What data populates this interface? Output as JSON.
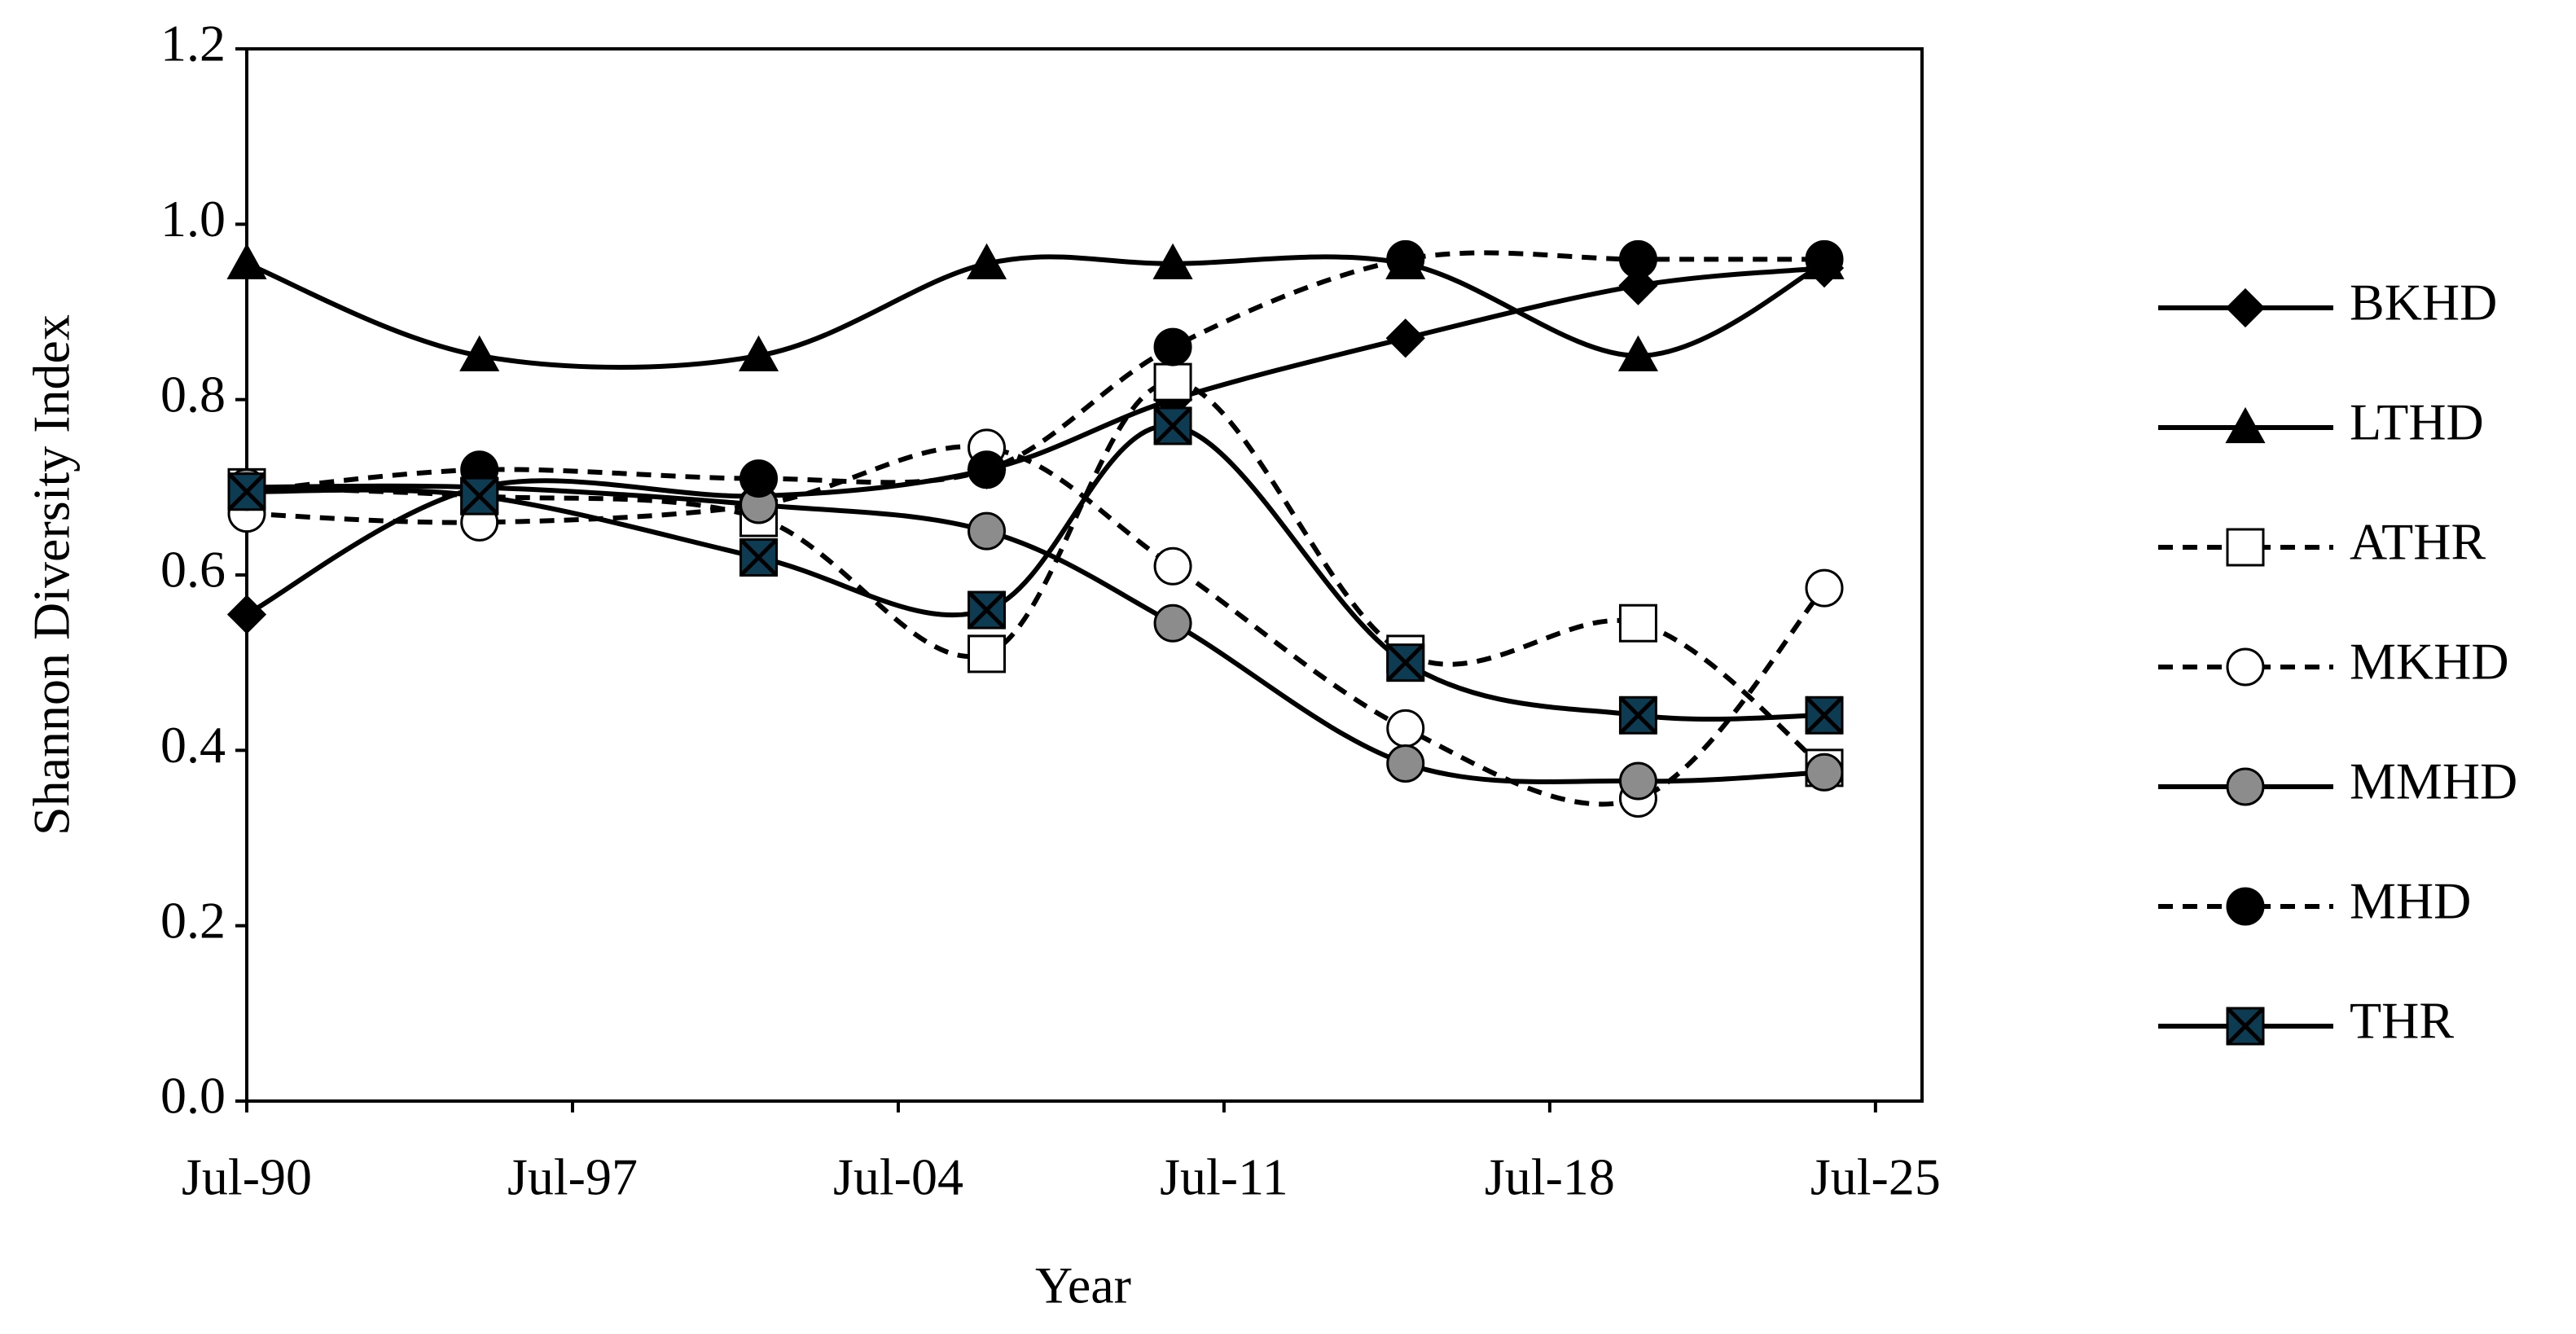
{
  "chart_data": {
    "type": "line",
    "x_label": "Year",
    "y_label": "Shannon Diversity Index",
    "xlim": [
      1990.5,
      2026.5
    ],
    "xticks": [
      {
        "value": 1990.5,
        "label": "Jul-90"
      },
      {
        "value": 1997.5,
        "label": "Jul-97"
      },
      {
        "value": 2004.5,
        "label": "Jul-04"
      },
      {
        "value": 2011.5,
        "label": "Jul-11"
      },
      {
        "value": 2018.5,
        "label": "Jul-18"
      },
      {
        "value": 2025.5,
        "label": "Jul-25"
      }
    ],
    "ylim": [
      0,
      1.2
    ],
    "yticks": [
      {
        "value": 0,
        "label": "0.0"
      },
      0.2,
      0.4,
      0.6,
      0.8,
      {
        "value": 1,
        "label": "1.0"
      },
      1.2
    ],
    "x": [
      1990.5,
      1995.5,
      2001.5,
      2006.4,
      2010.4,
      2015.4,
      2020.4,
      2024.4
    ],
    "series": [
      {
        "name": "BKHD",
        "color": "#000000",
        "marker": "diamond",
        "marker_fill": "#000000",
        "dashed": false,
        "values": [
          0.555,
          0.7,
          0.69,
          0.72,
          0.8,
          0.87,
          0.93,
          0.95
        ]
      },
      {
        "name": "LTHD",
        "color": "#000000",
        "marker": "triangle",
        "marker_fill": "#000000",
        "dashed": false,
        "values": [
          0.955,
          0.85,
          0.85,
          0.955,
          0.955,
          0.955,
          0.85,
          0.955
        ]
      },
      {
        "name": "ATHR",
        "color": "#000000",
        "marker": "square",
        "marker_fill": "#ffffff",
        "dashed": true,
        "values": [
          0.7,
          0.69,
          0.665,
          0.51,
          0.82,
          0.51,
          0.545,
          0.38
        ]
      },
      {
        "name": "MKHD",
        "color": "#000000",
        "marker": "circle",
        "marker_fill": "#ffffff",
        "dashed": true,
        "values": [
          0.67,
          0.66,
          0.68,
          0.745,
          0.61,
          0.425,
          0.345,
          0.585
        ]
      },
      {
        "name": "MMHD",
        "color": "#000000",
        "marker": "circle",
        "marker_fill": "#8c8c8c",
        "dashed": false,
        "values": [
          0.7,
          0.7,
          0.68,
          0.65,
          0.545,
          0.385,
          0.365,
          0.375
        ]
      },
      {
        "name": "MHD",
        "color": "#000000",
        "marker": "circle",
        "marker_fill": "#000000",
        "dashed": true,
        "values": [
          0.695,
          0.72,
          0.71,
          0.72,
          0.86,
          0.96,
          0.96,
          0.96
        ]
      },
      {
        "name": "THR",
        "color": "#000000",
        "marker": "xsquare",
        "marker_fill": "#0d3b52",
        "dashed": false,
        "values": [
          0.695,
          0.69,
          0.62,
          0.56,
          0.77,
          0.5,
          0.44,
          0.44
        ]
      }
    ]
  }
}
